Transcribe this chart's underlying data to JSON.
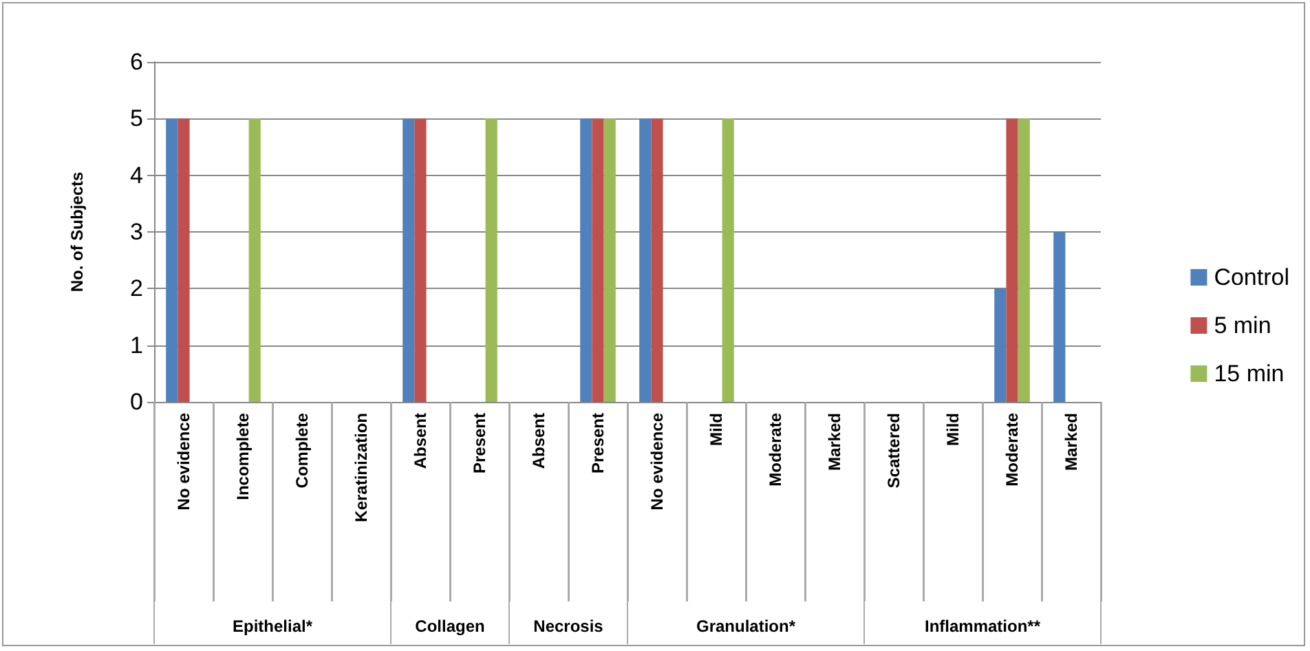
{
  "chart_data": {
    "type": "bar",
    "ylabel": "No. of Subjects",
    "categories": [
      "No evidence",
      "Incomplete",
      "Complete",
      "Keratinization",
      "Absent",
      "Present",
      "Absent",
      "Present",
      "No evidence",
      "Mild",
      "Moderate",
      "Marked",
      "Scattered",
      "Mild",
      "Moderate",
      "Marked"
    ],
    "series": [
      {
        "name": "Control",
        "color": "#4f81bd",
        "values": [
          5,
          0,
          0,
          0,
          5,
          0,
          0,
          5,
          5,
          0,
          0,
          0,
          0,
          0,
          2,
          3
        ]
      },
      {
        "name": "5 min",
        "color": "#c0504d",
        "values": [
          5,
          0,
          0,
          0,
          5,
          0,
          0,
          5,
          5,
          0,
          0,
          0,
          0,
          0,
          5,
          0
        ]
      },
      {
        "name": "15 min",
        "color": "#9bbb59",
        "values": [
          0,
          5,
          0,
          0,
          0,
          5,
          0,
          5,
          0,
          5,
          0,
          0,
          0,
          0,
          5,
          0
        ]
      }
    ],
    "annotations": [
      "Epithelial*",
      "Collagen",
      "Necrosis",
      "Granulation*",
      "Inflammation**"
    ],
    "ylim": [
      0,
      6
    ],
    "yticks": [
      0,
      1,
      2,
      3,
      4,
      5,
      6
    ],
    "grid": "y",
    "legend": "right"
  }
}
